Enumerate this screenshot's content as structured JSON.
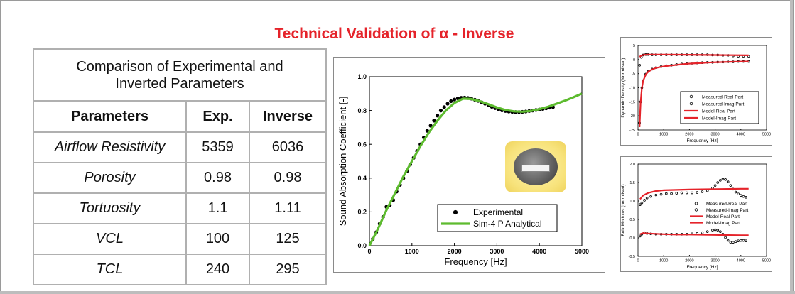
{
  "page": {
    "title": "Technical Validation of α - Inverse"
  },
  "table": {
    "caption": [
      "Comparison of Experimental and",
      "Inverted Parameters"
    ],
    "headers": [
      "Parameters",
      "Exp.",
      "Inverse"
    ],
    "rows": [
      [
        "Airflow Resistivity",
        "5359",
        "6036"
      ],
      [
        "Porosity",
        "0.98",
        "0.98"
      ],
      [
        "Tortuosity",
        "1.1",
        "1.11"
      ],
      [
        "VCL",
        "100",
        "125"
      ],
      [
        "TCL",
        "240",
        "295"
      ]
    ]
  },
  "chart_data": [
    {
      "type": "scatter",
      "xlabel": "Frequency [Hz]",
      "ylabel": "Sound Absorption Coefficient  [-]",
      "xlim": [
        0,
        5000
      ],
      "ylim": [
        0,
        1.0
      ],
      "xticks": [
        "0",
        "1000",
        "2000",
        "3000",
        "4000",
        "5000"
      ],
      "yticks": [
        "0.0",
        "0.2",
        "0.4",
        "0.6",
        "0.8",
        "1.0"
      ],
      "legend_position": "bottom-right",
      "series": [
        {
          "name": "Experimental",
          "style": "markers",
          "color": "#000000",
          "x": [
            80,
            160,
            240,
            320,
            400,
            480,
            560,
            640,
            720,
            800,
            880,
            960,
            1040,
            1120,
            1200,
            1280,
            1360,
            1440,
            1520,
            1600,
            1680,
            1760,
            1840,
            1920,
            2000,
            2080,
            2160,
            2240,
            2320,
            2400,
            2480,
            2560,
            2640,
            2720,
            2800,
            2880,
            2960,
            3040,
            3120,
            3200,
            3280,
            3360,
            3440,
            3520,
            3600,
            3680,
            3760,
            3840,
            3920,
            4000,
            4080,
            4160,
            4240,
            4320
          ],
          "y": [
            0.04,
            0.08,
            0.13,
            0.17,
            0.23,
            0.24,
            0.27,
            0.32,
            0.36,
            0.4,
            0.44,
            0.48,
            0.52,
            0.56,
            0.6,
            0.64,
            0.68,
            0.71,
            0.74,
            0.77,
            0.8,
            0.82,
            0.84,
            0.855,
            0.865,
            0.872,
            0.875,
            0.876,
            0.874,
            0.87,
            0.864,
            0.857,
            0.849,
            0.84,
            0.831,
            0.822,
            0.814,
            0.807,
            0.801,
            0.797,
            0.794,
            0.792,
            0.791,
            0.791,
            0.792,
            0.794,
            0.797,
            0.8,
            0.803,
            0.806,
            0.809,
            0.813,
            0.817,
            0.82
          ]
        },
        {
          "name": "Sim-4 P Analytical",
          "style": "line",
          "color": "#5dbb2f",
          "x": [
            0,
            200,
            400,
            600,
            800,
            1000,
            1200,
            1400,
            1600,
            1800,
            2000,
            2200,
            2400,
            2600,
            2800,
            3000,
            3200,
            3400,
            3600,
            3800,
            4000,
            4200,
            4400,
            4600,
            4800,
            5000
          ],
          "y": [
            0.0,
            0.1,
            0.21,
            0.31,
            0.41,
            0.5,
            0.59,
            0.67,
            0.74,
            0.8,
            0.845,
            0.87,
            0.868,
            0.855,
            0.837,
            0.818,
            0.803,
            0.795,
            0.793,
            0.797,
            0.808,
            0.822,
            0.84,
            0.858,
            0.878,
            0.9
          ]
        }
      ],
      "inset": "photo of sample disc"
    },
    {
      "type": "scatter",
      "xlabel": "Frequency [Hz]",
      "ylabel": "Dynamic Density (Normlised)",
      "xlim": [
        0,
        5000
      ],
      "ylim": [
        -25,
        5
      ],
      "xticks": [
        "0",
        "1000",
        "2000",
        "3000",
        "4000",
        "5000"
      ],
      "yticks": [
        "5",
        "0",
        "-5",
        "-10",
        "-15",
        "-20",
        "-25"
      ],
      "legend_position": "bottom-right",
      "series": [
        {
          "name": "Measured-Real Part",
          "style": "markers",
          "color": "#000000",
          "x": [
            60,
            130,
            200,
            300,
            400,
            550,
            700,
            900,
            1100,
            1300,
            1500,
            1700,
            1900,
            2100,
            2300,
            2500,
            2700,
            2900,
            3100,
            3300,
            3500,
            3700,
            3900,
            4100,
            4300
          ],
          "y": [
            -2.0,
            0.8,
            1.6,
            1.8,
            1.8,
            1.7,
            1.7,
            1.7,
            1.7,
            1.7,
            1.7,
            1.7,
            1.7,
            1.7,
            1.7,
            1.7,
            1.7,
            1.6,
            1.6,
            1.5,
            1.5,
            1.3,
            1.2,
            1.2,
            1.2
          ]
        },
        {
          "name": "Measured-Imag Part",
          "style": "markers",
          "color": "#000000",
          "x": [
            60,
            100,
            150,
            200,
            300,
            400,
            550,
            700,
            900,
            1100,
            1300,
            1500,
            1700,
            1900,
            2100,
            2300,
            2500,
            2700,
            2900,
            3100,
            3300,
            3500,
            3700,
            3900,
            4100,
            4300
          ],
          "y": [
            -22.5,
            -15.0,
            -10.0,
            -7.5,
            -5.2,
            -4.2,
            -3.4,
            -2.9,
            -2.5,
            -2.2,
            -2.0,
            -1.8,
            -1.6,
            -1.5,
            -1.3,
            -1.2,
            -1.1,
            -1.0,
            -1.0,
            -0.9,
            -0.9,
            -0.8,
            -0.8,
            -0.7,
            -0.7,
            -0.7
          ]
        },
        {
          "name": "Model-Real Part",
          "style": "line",
          "color": "#e5232a",
          "x": [
            60,
            150,
            250,
            400,
            700,
            1000,
            2000,
            3000,
            4300
          ],
          "y": [
            1.0,
            1.5,
            1.7,
            1.75,
            1.75,
            1.75,
            1.7,
            1.6,
            1.5
          ]
        },
        {
          "name": "Model-Imag Part",
          "style": "line",
          "color": "#e5232a",
          "x": [
            60,
            100,
            150,
            200,
            300,
            400,
            550,
            700,
            900,
            1100,
            1300,
            1500,
            1700,
            1900,
            2100,
            2300,
            2500,
            2700,
            2900,
            3100,
            3300,
            3500,
            3700,
            3900,
            4100,
            4300
          ],
          "y": [
            -24.0,
            -15.5,
            -10.2,
            -7.6,
            -5.3,
            -4.3,
            -3.5,
            -3.0,
            -2.6,
            -2.3,
            -2.1,
            -1.9,
            -1.7,
            -1.5,
            -1.4,
            -1.3,
            -1.2,
            -1.1,
            -1.0,
            -0.95,
            -0.9,
            -0.85,
            -0.8,
            -0.75,
            -0.7,
            -0.7
          ]
        }
      ]
    },
    {
      "type": "scatter",
      "xlabel": "Frequency [Hz]",
      "ylabel": "Bulk Modulus (normlised)",
      "xlim": [
        0,
        5000
      ],
      "ylim": [
        -0.5,
        2.0
      ],
      "xticks": [
        "0",
        "1000",
        "2000",
        "3000",
        "4000",
        "5000"
      ],
      "yticks": [
        "2.0",
        "1.5",
        "1.0",
        "0.5",
        "0.0",
        "-0.5"
      ],
      "legend_position": "top-right",
      "series": [
        {
          "name": "Measured-Real Part",
          "style": "markers",
          "color": "#000000",
          "x": [
            80,
            150,
            250,
            350,
            500,
            700,
            900,
            1100,
            1300,
            1500,
            1700,
            1900,
            2100,
            2300,
            2500,
            2700,
            2900,
            3000,
            3100,
            3200,
            3300,
            3400,
            3500,
            3600,
            3700,
            3800,
            3900,
            4000,
            4100,
            4200
          ],
          "y": [
            0.9,
            0.95,
            1.02,
            1.08,
            1.12,
            1.16,
            1.18,
            1.2,
            1.2,
            1.21,
            1.22,
            1.22,
            1.22,
            1.23,
            1.25,
            1.28,
            1.35,
            1.42,
            1.5,
            1.56,
            1.59,
            1.58,
            1.52,
            1.42,
            1.32,
            1.24,
            1.19,
            1.15,
            1.12,
            1.1
          ]
        },
        {
          "name": "Measured-Imag Part",
          "style": "markers",
          "color": "#000000",
          "x": [
            80,
            150,
            250,
            350,
            500,
            700,
            900,
            1100,
            1300,
            1500,
            1700,
            1900,
            2100,
            2300,
            2500,
            2700,
            2900,
            3000,
            3100,
            3200,
            3300,
            3400,
            3500,
            3600,
            3700,
            3800,
            3900,
            4000,
            4100,
            4200
          ],
          "y": [
            0.05,
            0.1,
            0.14,
            0.12,
            0.11,
            0.1,
            0.1,
            0.1,
            0.1,
            0.1,
            0.1,
            0.1,
            0.11,
            0.12,
            0.14,
            0.17,
            0.21,
            0.22,
            0.21,
            0.17,
            0.1,
            0.01,
            -0.07,
            -0.12,
            -0.12,
            -0.1,
            -0.08,
            -0.07,
            -0.07,
            -0.08
          ]
        },
        {
          "name": "Model-Real Part",
          "style": "line",
          "color": "#e5232a",
          "x": [
            80,
            200,
            400,
            700,
            1000,
            1500,
            2000,
            3000,
            4000,
            4300
          ],
          "y": [
            1.05,
            1.15,
            1.22,
            1.27,
            1.29,
            1.3,
            1.31,
            1.32,
            1.33,
            1.33
          ]
        },
        {
          "name": "Model-Imag Part",
          "style": "line",
          "color": "#e5232a",
          "x": [
            80,
            200,
            400,
            700,
            1000,
            1500,
            2000,
            3000,
            4000,
            4300
          ],
          "y": [
            0.1,
            0.13,
            0.12,
            0.11,
            0.1,
            0.09,
            0.09,
            0.08,
            0.07,
            0.07
          ]
        }
      ]
    }
  ]
}
